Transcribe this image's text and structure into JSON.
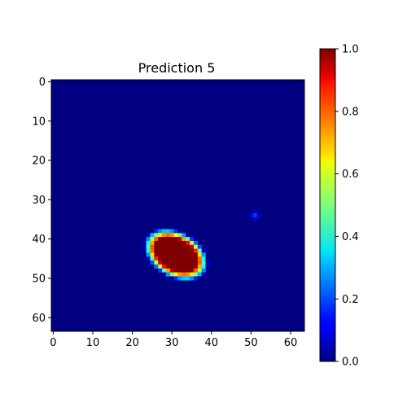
{
  "chart_data": {
    "type": "heatmap",
    "title": "Prediction 5",
    "grid": false,
    "colormap": "jet",
    "x_ticks": [
      "0",
      "10",
      "20",
      "30",
      "40",
      "50",
      "60"
    ],
    "y_ticks": [
      "0",
      "10",
      "20",
      "30",
      "40",
      "50",
      "60"
    ],
    "xlim": [
      -0.5,
      63.5
    ],
    "ylim": [
      63.5,
      -0.5
    ],
    "grid_size": [
      64,
      64
    ],
    "colorbar": {
      "range": [
        0,
        1
      ],
      "ticks": [
        "0.0",
        "0.2",
        "0.4",
        "0.6",
        "0.8",
        "1.0"
      ]
    },
    "regions": [
      {
        "shape": "ellipse",
        "center_x": 31,
        "center_y": 44,
        "radius_x": 7.5,
        "radius_y": 5,
        "angle_deg": 30,
        "peak": 1.0
      },
      {
        "shape": "point",
        "center_x": 51,
        "center_y": 34,
        "peak": 0.18
      }
    ]
  }
}
